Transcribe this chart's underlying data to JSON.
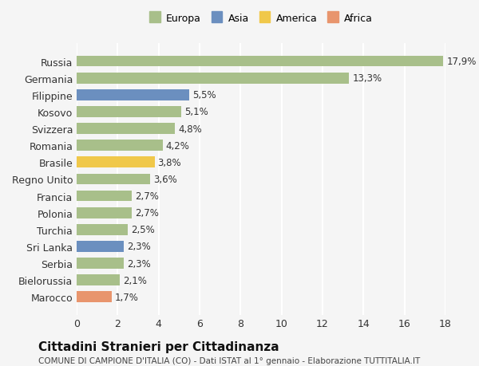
{
  "countries": [
    "Russia",
    "Germania",
    "Filippine",
    "Kosovo",
    "Svizzera",
    "Romania",
    "Brasile",
    "Regno Unito",
    "Francia",
    "Polonia",
    "Turchia",
    "Sri Lanka",
    "Serbia",
    "Bielorussia",
    "Marocco"
  ],
  "values": [
    17.9,
    13.3,
    5.5,
    5.1,
    4.8,
    4.2,
    3.8,
    3.6,
    2.7,
    2.7,
    2.5,
    2.3,
    2.3,
    2.1,
    1.7
  ],
  "labels": [
    "17,9%",
    "13,3%",
    "5,5%",
    "5,1%",
    "4,8%",
    "4,2%",
    "3,8%",
    "3,6%",
    "2,7%",
    "2,7%",
    "2,5%",
    "2,3%",
    "2,3%",
    "2,1%",
    "1,7%"
  ],
  "continents": [
    "Europa",
    "Europa",
    "Asia",
    "Europa",
    "Europa",
    "Europa",
    "America",
    "Europa",
    "Europa",
    "Europa",
    "Europa",
    "Asia",
    "Europa",
    "Europa",
    "Africa"
  ],
  "colors": {
    "Europa": "#a8bf8a",
    "Asia": "#6b8fbf",
    "America": "#f0c84a",
    "Africa": "#e8956d"
  },
  "legend_colors": {
    "Europa": "#a8bf8a",
    "Asia": "#6b8fbf",
    "America": "#f0c84a",
    "Africa": "#e8956d"
  },
  "title": "Cittadini Stranieri per Cittadinanza",
  "subtitle": "COMUNE DI CAMPIONE D'ITALIA (CO) - Dati ISTAT al 1° gennaio - Elaborazione TUTTITALIA.IT",
  "xlim": [
    0,
    18
  ],
  "xticks": [
    0,
    2,
    4,
    6,
    8,
    10,
    12,
    14,
    16,
    18
  ],
  "background_color": "#f5f5f5",
  "grid_color": "#ffffff",
  "bar_height": 0.65
}
